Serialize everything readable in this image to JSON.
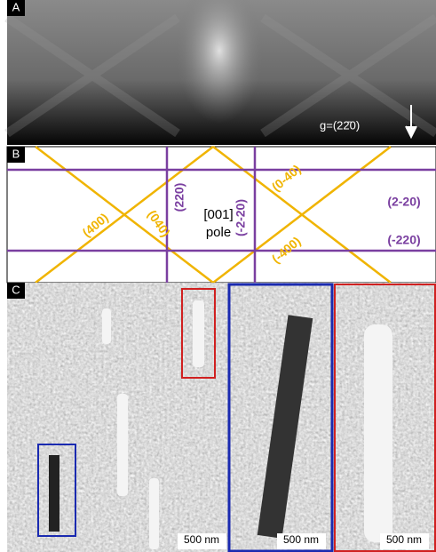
{
  "panel_a": {
    "label": "A",
    "g_vector": "g=(22̄0)"
  },
  "panel_b": {
    "label": "B",
    "center_line1": "[001]",
    "center_line2": "pole",
    "reflections": [
      "(220)",
      "(-2-20)",
      "(0-40)",
      "(2-20)",
      "(400)",
      "(040)",
      "(-400)",
      "(-220)"
    ]
  },
  "panel_c": {
    "label": "C",
    "scale_bars": [
      "500 nm",
      "500 nm",
      "500 nm"
    ]
  }
}
